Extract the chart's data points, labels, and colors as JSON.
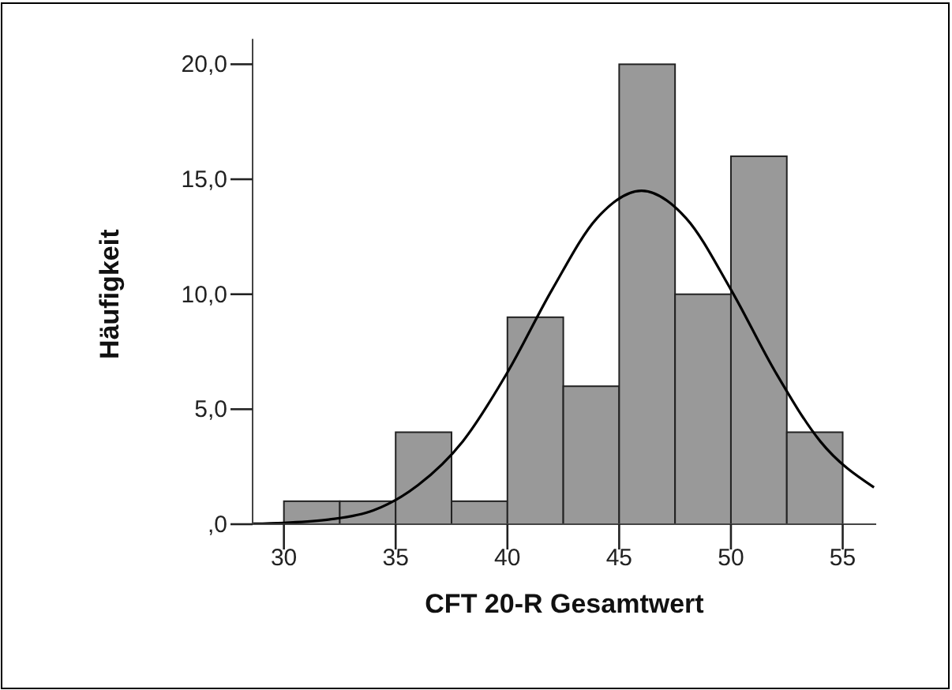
{
  "chart_data": {
    "type": "histogram",
    "xlabel": "CFT 20-R Gesamtwert",
    "ylabel": "Häufigkeit",
    "bins": [
      30,
      32.5,
      35,
      37.5,
      40,
      42.5,
      45,
      47.5,
      50,
      52.5,
      55
    ],
    "values": [
      1,
      1,
      4,
      1,
      9,
      6,
      20,
      10,
      16,
      4
    ],
    "color": "#999999",
    "series": [
      {
        "type": "line",
        "color": "#000000",
        "x": [
          28.6,
          30,
          32,
          34,
          36,
          38,
          40,
          42,
          44,
          46,
          48,
          50,
          52,
          54,
          56.4
        ],
        "values": [
          0.02,
          0.06,
          0.2,
          0.6,
          1.7,
          3.6,
          6.6,
          10.2,
          13.3,
          14.5,
          13.3,
          10.2,
          6.6,
          3.6,
          1.6
        ]
      }
    ],
    "xlim": [
      28.6,
      56.5
    ],
    "ylim": [
      0,
      21.1
    ],
    "xticks": [
      30,
      35,
      40,
      45,
      50,
      55
    ],
    "yticks": [
      {
        "value": 0,
        "label": ",0"
      },
      {
        "value": 5,
        "label": "5,0"
      },
      {
        "value": 10,
        "label": "10,0"
      },
      {
        "value": 15,
        "label": "15,0"
      },
      {
        "value": 20,
        "label": "20,0"
      }
    ],
    "grid": false
  }
}
